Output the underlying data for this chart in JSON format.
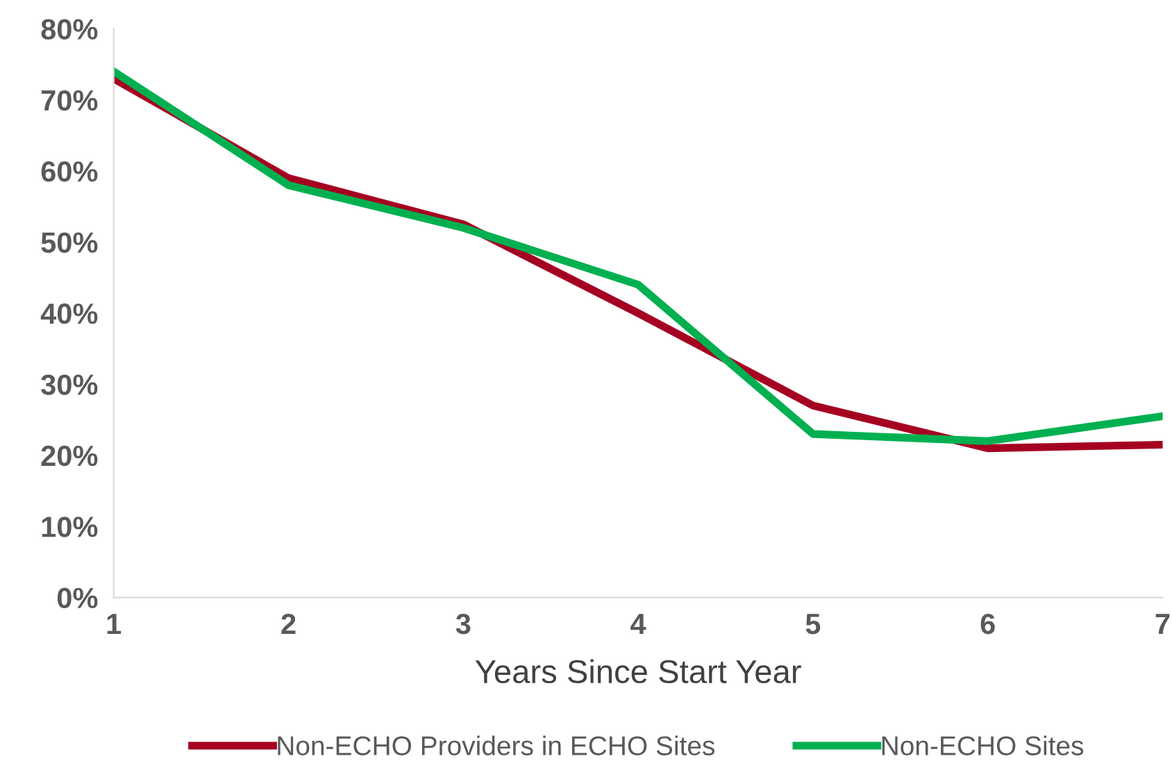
{
  "chart_data": {
    "type": "line",
    "xlabel": "Years Since Start Year",
    "x": [
      1,
      2,
      3,
      4,
      5,
      6,
      7
    ],
    "xlim": [
      1,
      7
    ],
    "xticks": [
      1,
      2,
      3,
      4,
      5,
      6,
      7
    ],
    "ylim": [
      0,
      80
    ],
    "yticks": [
      {
        "value": 0,
        "label": "0%"
      },
      {
        "value": 10,
        "label": "10%"
      },
      {
        "value": 20,
        "label": "20%"
      },
      {
        "value": 30,
        "label": "30%"
      },
      {
        "value": 40,
        "label": "40%"
      },
      {
        "value": 50,
        "label": "50%"
      },
      {
        "value": 60,
        "label": "60%"
      },
      {
        "value": 70,
        "label": "70%"
      },
      {
        "value": 80,
        "label": "80%"
      }
    ],
    "grid": false,
    "legend": "bottom",
    "line_style": "solid",
    "marker": "none",
    "series": [
      {
        "name": "Non-ECHO Providers in ECHO Sites",
        "color": "#a50021",
        "values": [
          73,
          59,
          52.5,
          40,
          27,
          21,
          21.5
        ]
      },
      {
        "name": "Non-ECHO Sites",
        "color": "#00b050",
        "values": [
          74,
          58,
          52,
          44,
          23,
          22,
          25.5
        ]
      }
    ]
  }
}
